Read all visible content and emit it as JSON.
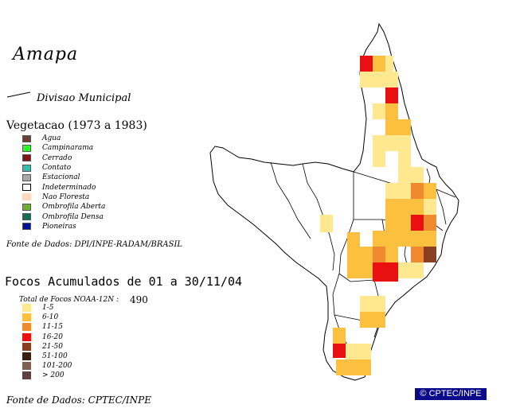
{
  "title": "Amapa",
  "division_label": "Divisao Municipal",
  "vegetation": {
    "title": "Vegetacao (1973 a 1983)",
    "items": [
      {
        "label": "Agua",
        "color": "#6b4030"
      },
      {
        "label": "Campinarama",
        "color": "#22ff22"
      },
      {
        "label": "Cerrado",
        "color": "#8b1010"
      },
      {
        "label": "Contato",
        "color": "#30c0b0"
      },
      {
        "label": "Estacional",
        "color": "#a8a8a8"
      },
      {
        "label": "Indeterminado",
        "color": "#ffffff"
      },
      {
        "label": "Nao Floresta",
        "color": "#ffd8c0"
      },
      {
        "label": "Ombrofila Aberta",
        "color": "#70b030"
      },
      {
        "label": "Ombrofila Densa",
        "color": "#107050"
      },
      {
        "label": "Pioneiras",
        "color": "#0010a0"
      }
    ],
    "source": "Fonte de Dados: DPI/INPE-RADAM/BRASIL"
  },
  "fires": {
    "title": "Focos Acumulados de 01 a 30/11/04",
    "total_label": "Total de Focos NOAA-12N :",
    "total_value": "490",
    "classes": [
      {
        "label": "1-5",
        "color": "#ffe890"
      },
      {
        "label": "6-10",
        "color": "#fcc040"
      },
      {
        "label": "11-15",
        "color": "#f08a30"
      },
      {
        "label": "16-20",
        "color": "#e81010"
      },
      {
        "label": "21-50",
        "color": "#8a4020"
      },
      {
        "label": "51-100",
        "color": "#3a2010"
      },
      {
        "label": "101-200",
        "color": "#806050"
      },
      {
        "label": "> 200",
        "color": "#604040"
      }
    ],
    "source": "Fonte de Dados: CPTEC/INPE"
  },
  "credit": "© CPTEC/INPE"
}
